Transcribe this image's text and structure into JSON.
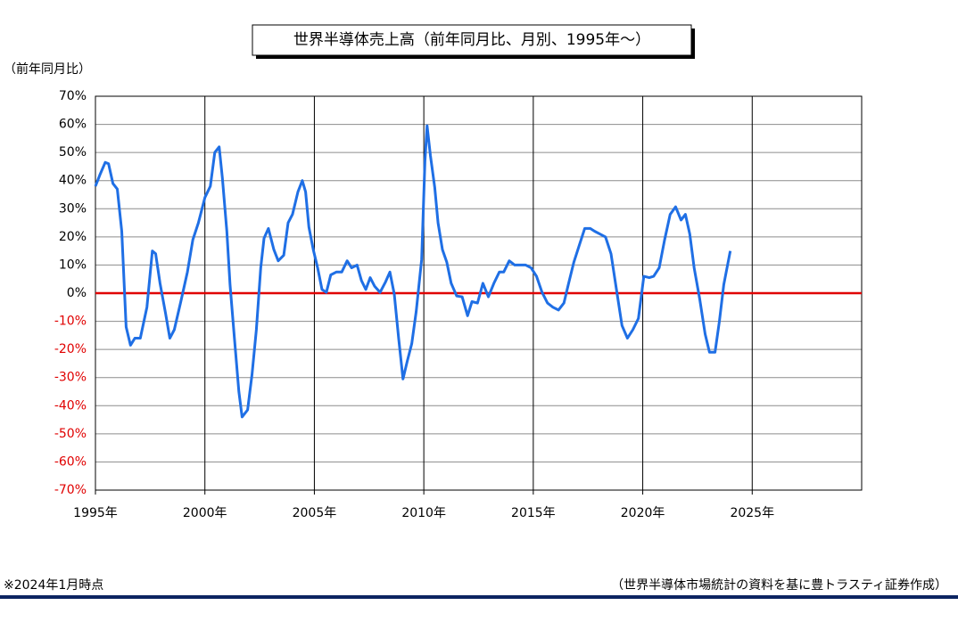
{
  "chart_data": {
    "type": "line",
    "title": "世界半導体売上高（前年同月比、月別、1995年～）",
    "y_label": "（前年同月比）",
    "note": "※2024年1月時点",
    "source": "（世界半導体市場統計の資料を基に豊トラスティ証券作成）",
    "color": "#1f6fe5",
    "negative_tick_color": "#e00000",
    "reference_line": {
      "value": 0,
      "color": "#e00000"
    },
    "grid": true,
    "xlim": [
      1995,
      2030
    ],
    "xticks": [
      {
        "value": 1995,
        "label": "1995年"
      },
      {
        "value": 2000,
        "label": "2000年"
      },
      {
        "value": 2005,
        "label": "2005年"
      },
      {
        "value": 2010,
        "label": "2010年"
      },
      {
        "value": 2015,
        "label": "2015年"
      },
      {
        "value": 2020,
        "label": "2020年"
      },
      {
        "value": 2025,
        "label": "2025年"
      }
    ],
    "ylim": [
      -70,
      70
    ],
    "yticks": [
      {
        "value": -70,
        "label": "-70%"
      },
      {
        "value": -60,
        "label": "-60%"
      },
      {
        "value": -50,
        "label": "-50%"
      },
      {
        "value": -40,
        "label": "-40%"
      },
      {
        "value": -30,
        "label": "-30%"
      },
      {
        "value": -20,
        "label": "-20%"
      },
      {
        "value": -10,
        "label": "-10%"
      },
      {
        "value": 0,
        "label": "0%"
      },
      {
        "value": 10,
        "label": "10%"
      },
      {
        "value": 20,
        "label": "20%"
      },
      {
        "value": 30,
        "label": "30%"
      },
      {
        "value": 40,
        "label": "40%"
      },
      {
        "value": 50,
        "label": "50%"
      },
      {
        "value": 60,
        "label": "60%"
      },
      {
        "value": 70,
        "label": "70%"
      }
    ],
    "x": [
      1995.0,
      1995.2,
      1995.45,
      1995.6,
      1995.8,
      1996.0,
      1996.2,
      1996.4,
      1996.6,
      1996.8,
      1997.05,
      1997.35,
      1997.6,
      1997.75,
      1997.95,
      1998.2,
      1998.4,
      1998.6,
      1998.9,
      1999.2,
      1999.45,
      1999.7,
      2000.0,
      2000.25,
      2000.45,
      2000.65,
      2000.8,
      2001.0,
      2001.15,
      2001.35,
      2001.55,
      2001.7,
      2001.95,
      2002.15,
      2002.35,
      2002.55,
      2002.7,
      2002.9,
      2003.15,
      2003.35,
      2003.6,
      2003.8,
      2004.0,
      2004.25,
      2004.45,
      2004.6,
      2004.75,
      2004.95,
      2005.15,
      2005.35,
      2005.55,
      2005.75,
      2006.0,
      2006.25,
      2006.5,
      2006.7,
      2006.95,
      2007.15,
      2007.35,
      2007.55,
      2007.75,
      2008.0,
      2008.25,
      2008.45,
      2008.65,
      2008.85,
      2009.05,
      2009.25,
      2009.45,
      2009.65,
      2009.9,
      2010.05,
      2010.15,
      2010.3,
      2010.5,
      2010.65,
      2010.85,
      2011.05,
      2011.25,
      2011.5,
      2011.75,
      2012.0,
      2012.2,
      2012.45,
      2012.7,
      2012.95,
      2013.2,
      2013.45,
      2013.65,
      2013.9,
      2014.15,
      2014.45,
      2014.65,
      2014.9,
      2015.15,
      2015.4,
      2015.65,
      2015.9,
      2016.15,
      2016.4,
      2016.6,
      2016.85,
      2017.1,
      2017.35,
      2017.6,
      2017.8,
      2018.05,
      2018.3,
      2018.55,
      2018.8,
      2019.05,
      2019.3,
      2019.55,
      2019.8,
      2020.05,
      2020.3,
      2020.5,
      2020.75,
      2021.0,
      2021.25,
      2021.5,
      2021.75,
      2021.95,
      2022.15,
      2022.35,
      2022.6,
      2022.85,
      2023.05,
      2023.3,
      2023.5,
      2023.7,
      2024.0
    ],
    "values": [
      38,
      42,
      46.5,
      46,
      39,
      37,
      22,
      -12,
      -18.5,
      -16,
      -16,
      -5,
      15,
      14,
      3.5,
      -7,
      -16,
      -13,
      -3,
      7.5,
      19,
      25,
      34,
      38,
      50,
      52,
      41,
      22,
      3,
      -16,
      -35,
      -44,
      -41.5,
      -29,
      -13,
      9,
      19.5,
      23,
      15.5,
      11.5,
      13.5,
      25,
      28,
      36,
      40,
      36,
      23.5,
      15.5,
      9,
      1.3,
      0.3,
      6.5,
      7.5,
      7.5,
      11.5,
      9,
      10,
      4.5,
      1.3,
      5.5,
      2.5,
      0.3,
      4,
      7.5,
      -0.3,
      -16,
      -30.5,
      -24,
      -18,
      -6.5,
      12,
      47,
      59.5,
      49,
      37.5,
      25,
      15.5,
      11,
      3.5,
      -1,
      -1.3,
      -8,
      -3,
      -3.5,
      3.5,
      -1.3,
      3.5,
      7.5,
      7.5,
      11.5,
      10,
      10,
      10,
      9,
      6,
      0.3,
      -3.5,
      -5,
      -6,
      -3.5,
      3,
      11,
      17,
      23,
      23,
      22,
      21,
      20,
      14,
      1.3,
      -11.5,
      -16,
      -13,
      -9,
      6,
      5.5,
      6,
      9,
      19,
      28,
      30.7,
      26,
      28,
      21,
      9,
      -2,
      -14.5,
      -21,
      -21,
      -10,
      3,
      15
    ]
  }
}
